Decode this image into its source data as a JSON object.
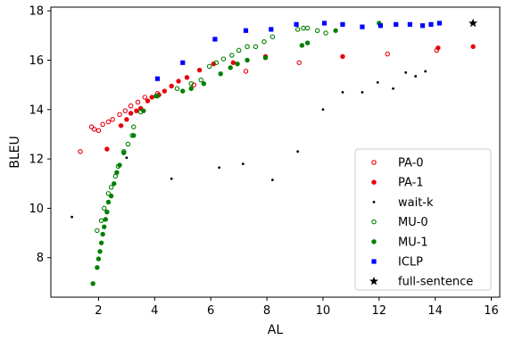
{
  "chart_data": {
    "type": "scatter",
    "xlabel": "AL",
    "ylabel": "BLEU",
    "xlim": [
      0.3,
      16.3
    ],
    "ylim": [
      6.4,
      18.15
    ],
    "xticks": [
      2,
      4,
      6,
      8,
      10,
      12,
      14,
      16
    ],
    "yticks": [
      8,
      10,
      12,
      14,
      16,
      18
    ],
    "legend_position": "lower-right",
    "series": [
      {
        "name": "PA-0",
        "color": "#e8000b",
        "marker": "circle-open",
        "points": [
          [
            1.35,
            12.3
          ],
          [
            1.75,
            13.3
          ],
          [
            1.85,
            13.2
          ],
          [
            2.0,
            13.15
          ],
          [
            2.15,
            13.4
          ],
          [
            2.35,
            13.5
          ],
          [
            2.5,
            13.6
          ],
          [
            2.75,
            13.8
          ],
          [
            2.95,
            13.95
          ],
          [
            3.15,
            14.15
          ],
          [
            3.4,
            14.3
          ],
          [
            3.65,
            14.5
          ],
          [
            4.1,
            14.65
          ],
          [
            5.4,
            15.0
          ],
          [
            7.25,
            15.55
          ],
          [
            9.15,
            15.9
          ],
          [
            12.3,
            16.25
          ],
          [
            14.05,
            16.4
          ]
        ]
      },
      {
        "name": "PA-1",
        "color": "#e8000b",
        "marker": "circle",
        "points": [
          [
            2.3,
            12.4
          ],
          [
            2.8,
            13.35
          ],
          [
            3.0,
            13.6
          ],
          [
            3.15,
            13.85
          ],
          [
            3.35,
            13.95
          ],
          [
            3.5,
            14.05
          ],
          [
            3.75,
            14.35
          ],
          [
            3.9,
            14.5
          ],
          [
            4.15,
            14.6
          ],
          [
            4.35,
            14.75
          ],
          [
            4.6,
            14.95
          ],
          [
            4.85,
            15.15
          ],
          [
            5.15,
            15.3
          ],
          [
            5.6,
            15.6
          ],
          [
            6.1,
            15.85
          ],
          [
            6.8,
            15.9
          ],
          [
            7.95,
            16.15
          ],
          [
            10.7,
            16.15
          ],
          [
            14.1,
            16.5
          ],
          [
            15.35,
            16.55
          ]
        ]
      },
      {
        "name": "wait-k",
        "color": "#000000",
        "marker": "dot",
        "points": [
          [
            1.05,
            9.65
          ],
          [
            3.0,
            12.05
          ],
          [
            4.6,
            11.2
          ],
          [
            6.3,
            11.65
          ],
          [
            7.15,
            11.8
          ],
          [
            8.2,
            11.15
          ],
          [
            9.1,
            12.3
          ],
          [
            10.0,
            14.0
          ],
          [
            10.7,
            14.7
          ],
          [
            11.4,
            14.7
          ],
          [
            11.95,
            15.1
          ],
          [
            12.5,
            14.85
          ],
          [
            12.95,
            15.5
          ],
          [
            13.3,
            15.35
          ],
          [
            13.65,
            15.55
          ],
          [
            15.3,
            17.5
          ]
        ]
      },
      {
        "name": "MU-0",
        "color": "#008000",
        "marker": "circle-open",
        "points": [
          [
            1.95,
            9.1
          ],
          [
            2.1,
            9.5
          ],
          [
            2.2,
            10.0
          ],
          [
            2.35,
            10.6
          ],
          [
            2.45,
            10.85
          ],
          [
            2.6,
            11.3
          ],
          [
            2.7,
            11.7
          ],
          [
            2.9,
            12.3
          ],
          [
            3.05,
            12.6
          ],
          [
            3.2,
            12.95
          ],
          [
            3.25,
            13.3
          ],
          [
            3.5,
            13.9
          ],
          [
            4.1,
            14.55
          ],
          [
            4.8,
            14.85
          ],
          [
            5.3,
            15.05
          ],
          [
            5.65,
            15.2
          ],
          [
            5.95,
            15.75
          ],
          [
            6.2,
            15.9
          ],
          [
            6.45,
            16.05
          ],
          [
            6.75,
            16.2
          ],
          [
            7.0,
            16.4
          ],
          [
            7.3,
            16.55
          ],
          [
            7.6,
            16.55
          ],
          [
            7.9,
            16.75
          ],
          [
            8.2,
            16.95
          ],
          [
            9.1,
            17.25
          ],
          [
            9.3,
            17.3
          ],
          [
            9.45,
            17.3
          ],
          [
            9.8,
            17.2
          ],
          [
            10.1,
            17.1
          ]
        ]
      },
      {
        "name": "MU-1",
        "color": "#008000",
        "marker": "circle",
        "points": [
          [
            1.8,
            6.95
          ],
          [
            1.95,
            7.6
          ],
          [
            2.0,
            7.95
          ],
          [
            2.05,
            8.25
          ],
          [
            2.1,
            8.6
          ],
          [
            2.15,
            8.95
          ],
          [
            2.2,
            9.25
          ],
          [
            2.25,
            9.55
          ],
          [
            2.3,
            9.85
          ],
          [
            2.35,
            10.25
          ],
          [
            2.45,
            10.5
          ],
          [
            2.55,
            11.0
          ],
          [
            2.65,
            11.45
          ],
          [
            2.75,
            11.75
          ],
          [
            2.9,
            12.25
          ],
          [
            3.25,
            12.95
          ],
          [
            3.6,
            13.95
          ],
          [
            4.05,
            14.55
          ],
          [
            5.0,
            14.75
          ],
          [
            5.3,
            14.85
          ],
          [
            5.75,
            15.05
          ],
          [
            6.35,
            15.45
          ],
          [
            6.7,
            15.7
          ],
          [
            6.95,
            15.85
          ],
          [
            7.3,
            16.0
          ],
          [
            7.95,
            16.1
          ],
          [
            9.25,
            16.6
          ],
          [
            9.45,
            16.7
          ],
          [
            10.45,
            17.2
          ],
          [
            12.0,
            17.5
          ]
        ]
      },
      {
        "name": "ICLP",
        "color": "#0000ff",
        "marker": "square",
        "points": [
          [
            4.1,
            15.25
          ],
          [
            5.0,
            15.9
          ],
          [
            6.15,
            16.85
          ],
          [
            7.25,
            17.2
          ],
          [
            8.15,
            17.25
          ],
          [
            9.05,
            17.45
          ],
          [
            10.05,
            17.5
          ],
          [
            10.7,
            17.45
          ],
          [
            11.4,
            17.35
          ],
          [
            12.05,
            17.4
          ],
          [
            12.6,
            17.45
          ],
          [
            13.1,
            17.45
          ],
          [
            13.55,
            17.4
          ],
          [
            13.85,
            17.45
          ],
          [
            14.15,
            17.5
          ]
        ]
      },
      {
        "name": "full-sentence",
        "color": "#000000",
        "marker": "star",
        "points": [
          [
            15.35,
            17.5
          ]
        ]
      }
    ]
  }
}
